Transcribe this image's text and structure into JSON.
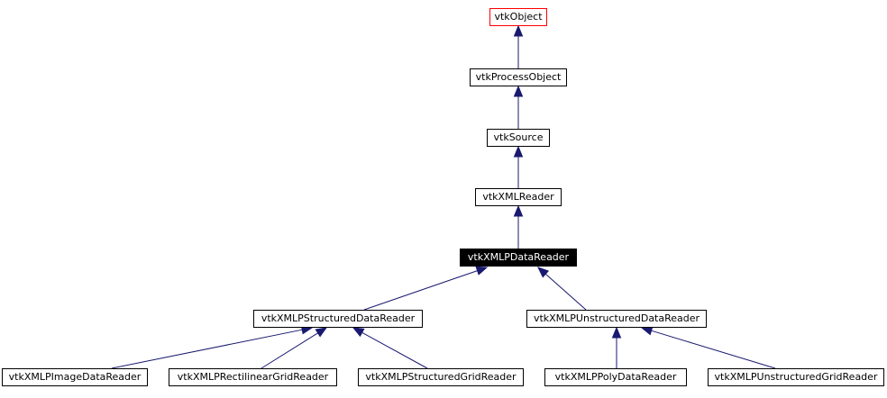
{
  "diagram": {
    "colors": {
      "edge": "#191970",
      "root_border": "#ff0000",
      "current_bg": "#000000",
      "current_text": "#ffffff"
    },
    "nodes": {
      "vtkObject": "vtkObject",
      "vtkProcessObject": "vtkProcessObject",
      "vtkSource": "vtkSource",
      "vtkXMLReader": "vtkXMLReader",
      "vtkXMLPDataReader": "vtkXMLPDataReader",
      "vtkXMLPStructuredDataReader": "vtkXMLPStructuredDataReader",
      "vtkXMLPUnstructuredDataReader": "vtkXMLPUnstructuredDataReader",
      "vtkXMLPImageDataReader": "vtkXMLPImageDataReader",
      "vtkXMLPRectilinearGridReader": "vtkXMLPRectilinearGridReader",
      "vtkXMLPStructuredGridReader": "vtkXMLPStructuredGridReader",
      "vtkXMLPPolyDataReader": "vtkXMLPPolyDataReader",
      "vtkXMLPUnstructuredGridReader": "vtkXMLPUnstructuredGridReader"
    },
    "edges": [
      {
        "from": "vtkProcessObject",
        "to": "vtkObject"
      },
      {
        "from": "vtkSource",
        "to": "vtkProcessObject"
      },
      {
        "from": "vtkXMLReader",
        "to": "vtkSource"
      },
      {
        "from": "vtkXMLPDataReader",
        "to": "vtkXMLReader"
      },
      {
        "from": "vtkXMLPStructuredDataReader",
        "to": "vtkXMLPDataReader"
      },
      {
        "from": "vtkXMLPUnstructuredDataReader",
        "to": "vtkXMLPDataReader"
      },
      {
        "from": "vtkXMLPImageDataReader",
        "to": "vtkXMLPStructuredDataReader"
      },
      {
        "from": "vtkXMLPRectilinearGridReader",
        "to": "vtkXMLPStructuredDataReader"
      },
      {
        "from": "vtkXMLPStructuredGridReader",
        "to": "vtkXMLPStructuredDataReader"
      },
      {
        "from": "vtkXMLPPolyDataReader",
        "to": "vtkXMLPUnstructuredDataReader"
      },
      {
        "from": "vtkXMLPUnstructuredGridReader",
        "to": "vtkXMLPUnstructuredDataReader"
      }
    ]
  }
}
